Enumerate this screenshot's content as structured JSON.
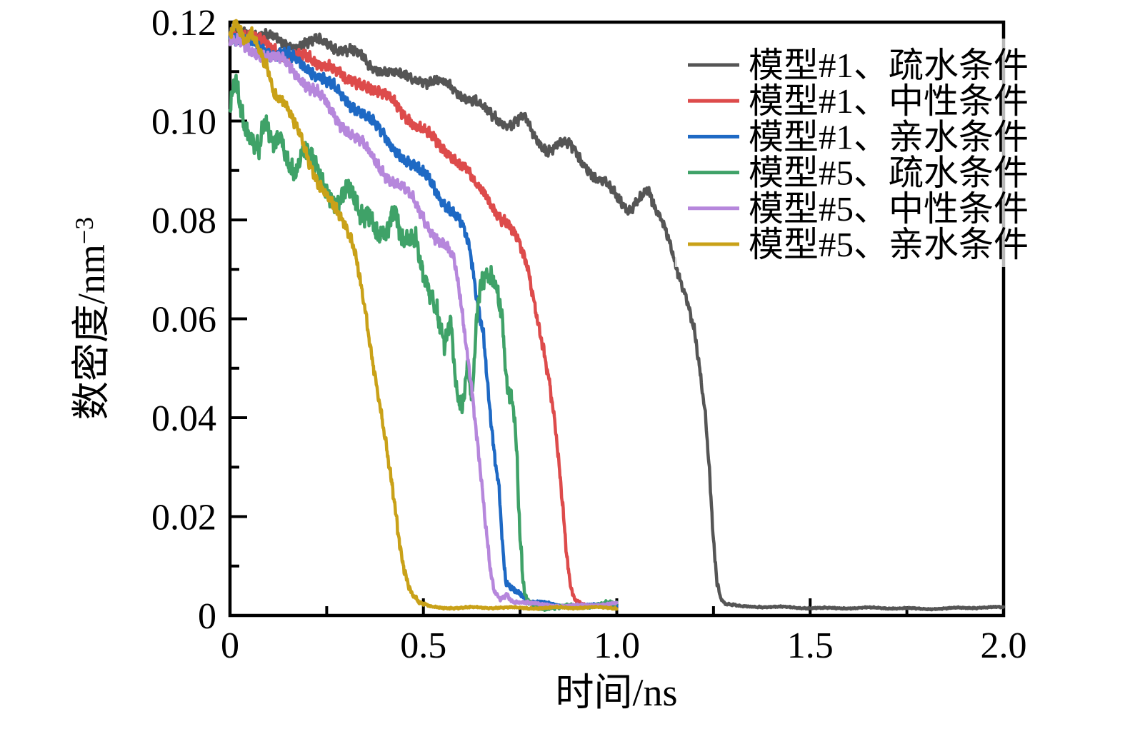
{
  "figure": {
    "background": "#ffffff",
    "frame_color": "#000000"
  },
  "chart_data": {
    "type": "line",
    "title": "",
    "xlabel": "时间/ns",
    "ylabel": "数密度/nm⁻³",
    "ylabel_base": "数密度/nm",
    "ylabel_exponent": "−3",
    "xlim": [
      0,
      2.0
    ],
    "ylim": [
      0,
      0.12
    ],
    "x_major_ticks": [
      0,
      0.5,
      1.0,
      1.5,
      2.0
    ],
    "x_tick_labels": [
      "0",
      "0.5",
      "1.0",
      "1.5",
      "2.0"
    ],
    "x_minor_step": 0.25,
    "y_major_ticks": [
      0,
      0.02,
      0.04,
      0.06,
      0.08,
      0.1,
      0.12
    ],
    "y_tick_labels": [
      "0",
      "0.02",
      "0.04",
      "0.06",
      "0.08",
      "0.10",
      "0.12"
    ],
    "y_minor_step": 0.01,
    "grid": false,
    "tick_direction": "in",
    "legend_position": "upper right",
    "series": [
      {
        "name": "模型#1、疏水条件",
        "color": "#555555",
        "t_end": 2.0,
        "seed": 1,
        "noise_hf": 0.0011,
        "noise_lf": 0.0011,
        "points": [
          [
            0,
            0.117
          ],
          [
            0.03,
            0.1178
          ],
          [
            0.08,
            0.1172
          ],
          [
            0.13,
            0.1163
          ],
          [
            0.18,
            0.1158
          ],
          [
            0.23,
            0.1162
          ],
          [
            0.28,
            0.1145
          ],
          [
            0.33,
            0.113
          ],
          [
            0.37,
            0.111
          ],
          [
            0.41,
            0.1103
          ],
          [
            0.45,
            0.1093
          ],
          [
            0.5,
            0.1085
          ],
          [
            0.55,
            0.107
          ],
          [
            0.6,
            0.1052
          ],
          [
            0.64,
            0.1035
          ],
          [
            0.68,
            0.101
          ],
          [
            0.72,
            0.1
          ],
          [
            0.76,
            0.1008
          ],
          [
            0.79,
            0.096
          ],
          [
            0.82,
            0.094
          ],
          [
            0.85,
            0.0952
          ],
          [
            0.88,
            0.0945
          ],
          [
            0.91,
            0.0915
          ],
          [
            0.94,
            0.0895
          ],
          [
            0.97,
            0.088
          ],
          [
            1.0,
            0.0845
          ],
          [
            1.03,
            0.0825
          ],
          [
            1.055,
            0.0845
          ],
          [
            1.08,
            0.0858
          ],
          [
            1.1,
            0.081
          ],
          [
            1.12,
            0.0788
          ],
          [
            1.14,
            0.0745
          ],
          [
            1.16,
            0.069
          ],
          [
            1.18,
            0.0642
          ],
          [
            1.2,
            0.0575
          ],
          [
            1.215,
            0.049
          ],
          [
            1.23,
            0.04
          ],
          [
            1.24,
            0.029
          ],
          [
            1.25,
            0.016
          ],
          [
            1.258,
            0.0085
          ],
          [
            1.267,
            0.0042
          ],
          [
            1.28,
            0.0025
          ],
          [
            1.32,
            0.0018
          ],
          [
            1.45,
            0.0016
          ],
          [
            1.6,
            0.0015
          ],
          [
            1.8,
            0.0014
          ],
          [
            2.0,
            0.0016
          ]
        ]
      },
      {
        "name": "模型#1、中性条件",
        "color": "#dd4b4b",
        "t_end": 1.0,
        "seed": 2,
        "noise_hf": 0.0012,
        "noise_lf": 0.0012,
        "points": [
          [
            0,
            0.1168
          ],
          [
            0.03,
            0.1176
          ],
          [
            0.07,
            0.1162
          ],
          [
            0.12,
            0.115
          ],
          [
            0.17,
            0.1132
          ],
          [
            0.22,
            0.1118
          ],
          [
            0.26,
            0.111
          ],
          [
            0.3,
            0.1073
          ],
          [
            0.35,
            0.108
          ],
          [
            0.4,
            0.1055
          ],
          [
            0.44,
            0.1028
          ],
          [
            0.48,
            0.0992
          ],
          [
            0.52,
            0.0962
          ],
          [
            0.55,
            0.094
          ],
          [
            0.58,
            0.0925
          ],
          [
            0.61,
            0.0905
          ],
          [
            0.635,
            0.0868
          ],
          [
            0.66,
            0.0858
          ],
          [
            0.69,
            0.0822
          ],
          [
            0.72,
            0.079
          ],
          [
            0.745,
            0.0755
          ],
          [
            0.77,
            0.07
          ],
          [
            0.79,
            0.062
          ],
          [
            0.81,
            0.054
          ],
          [
            0.825,
            0.047
          ],
          [
            0.84,
            0.038
          ],
          [
            0.855,
            0.026
          ],
          [
            0.868,
            0.014
          ],
          [
            0.878,
            0.007
          ],
          [
            0.89,
            0.0035
          ],
          [
            0.92,
            0.0022
          ],
          [
            0.96,
            0.0018
          ],
          [
            1.0,
            0.002
          ]
        ]
      },
      {
        "name": "模型#1、亲水条件",
        "color": "#1e69c4",
        "t_end": 1.0,
        "seed": 3,
        "noise_hf": 0.0012,
        "noise_lf": 0.0012,
        "points": [
          [
            0,
            0.1172
          ],
          [
            0.04,
            0.1162
          ],
          [
            0.09,
            0.115
          ],
          [
            0.14,
            0.1135
          ],
          [
            0.19,
            0.111
          ],
          [
            0.24,
            0.1082
          ],
          [
            0.29,
            0.1048
          ],
          [
            0.335,
            0.1028
          ],
          [
            0.38,
            0.099
          ],
          [
            0.42,
            0.095
          ],
          [
            0.46,
            0.0915
          ],
          [
            0.49,
            0.089
          ],
          [
            0.515,
            0.088
          ],
          [
            0.545,
            0.0845
          ],
          [
            0.575,
            0.0815
          ],
          [
            0.6,
            0.079
          ],
          [
            0.62,
            0.0745
          ],
          [
            0.638,
            0.065
          ],
          [
            0.655,
            0.058
          ],
          [
            0.67,
            0.044
          ],
          [
            0.683,
            0.033
          ],
          [
            0.696,
            0.025
          ],
          [
            0.705,
            0.013
          ],
          [
            0.713,
            0.0062
          ],
          [
            0.73,
            0.005
          ],
          [
            0.75,
            0.0045
          ],
          [
            0.77,
            0.0028
          ],
          [
            0.85,
            0.002
          ],
          [
            1.0,
            0.0022
          ]
        ]
      },
      {
        "name": "模型#5、疏水条件",
        "color": "#3fa268",
        "t_end": 1.0,
        "seed": 5,
        "noise_hf": 0.0022,
        "noise_lf": 0.003,
        "points": [
          [
            0,
            0.103
          ],
          [
            0.015,
            0.1092
          ],
          [
            0.035,
            0.102
          ],
          [
            0.055,
            0.0985
          ],
          [
            0.075,
            0.094
          ],
          [
            0.09,
            0.0982
          ],
          [
            0.11,
            0.093
          ],
          [
            0.13,
            0.0965
          ],
          [
            0.15,
            0.092
          ],
          [
            0.17,
            0.0893
          ],
          [
            0.19,
            0.0932
          ],
          [
            0.22,
            0.09
          ],
          [
            0.25,
            0.0875
          ],
          [
            0.28,
            0.0855
          ],
          [
            0.3,
            0.0872
          ],
          [
            0.32,
            0.0835
          ],
          [
            0.34,
            0.0802
          ],
          [
            0.36,
            0.0825
          ],
          [
            0.38,
            0.0783
          ],
          [
            0.405,
            0.076
          ],
          [
            0.425,
            0.0792
          ],
          [
            0.445,
            0.0735
          ],
          [
            0.465,
            0.0763
          ],
          [
            0.48,
            0.078
          ],
          [
            0.5,
            0.0705
          ],
          [
            0.52,
            0.0648
          ],
          [
            0.54,
            0.059
          ],
          [
            0.555,
            0.0545
          ],
          [
            0.57,
            0.0618
          ],
          [
            0.585,
            0.048
          ],
          [
            0.6,
            0.0442
          ],
          [
            0.615,
            0.052
          ],
          [
            0.625,
            0.0425
          ],
          [
            0.635,
            0.055
          ],
          [
            0.645,
            0.064
          ],
          [
            0.66,
            0.0662
          ],
          [
            0.675,
            0.067
          ],
          [
            0.69,
            0.066
          ],
          [
            0.705,
            0.06
          ],
          [
            0.715,
            0.047
          ],
          [
            0.725,
            0.045
          ],
          [
            0.735,
            0.0395
          ],
          [
            0.742,
            0.03
          ],
          [
            0.75,
            0.014
          ],
          [
            0.757,
            0.006
          ],
          [
            0.765,
            0.003
          ],
          [
            0.78,
            0.0022
          ],
          [
            0.85,
            0.0018
          ],
          [
            1.0,
            0.002
          ]
        ]
      },
      {
        "name": "模型#5、中性条件",
        "color": "#b687dc",
        "t_end": 1.0,
        "seed": 4,
        "noise_hf": 0.0012,
        "noise_lf": 0.0013,
        "points": [
          [
            0,
            0.1162
          ],
          [
            0.04,
            0.1155
          ],
          [
            0.09,
            0.1138
          ],
          [
            0.14,
            0.1115
          ],
          [
            0.19,
            0.1078
          ],
          [
            0.24,
            0.1038
          ],
          [
            0.29,
            0.0998
          ],
          [
            0.34,
            0.0958
          ],
          [
            0.39,
            0.0905
          ],
          [
            0.43,
            0.0868
          ],
          [
            0.47,
            0.0838
          ],
          [
            0.5,
            0.0805
          ],
          [
            0.53,
            0.0768
          ],
          [
            0.56,
            0.0745
          ],
          [
            0.58,
            0.0718
          ],
          [
            0.595,
            0.065
          ],
          [
            0.61,
            0.056
          ],
          [
            0.625,
            0.047
          ],
          [
            0.64,
            0.0355
          ],
          [
            0.652,
            0.026
          ],
          [
            0.663,
            0.016
          ],
          [
            0.673,
            0.0085
          ],
          [
            0.683,
            0.0045
          ],
          [
            0.7,
            0.003
          ],
          [
            0.715,
            0.0042
          ],
          [
            0.73,
            0.0028
          ],
          [
            0.8,
            0.0022
          ],
          [
            0.9,
            0.002
          ],
          [
            1.0,
            0.0023
          ]
        ]
      },
      {
        "name": "模型#5、亲水条件",
        "color": "#c9a118",
        "t_end": 1.0,
        "seed": 6,
        "noise_hf": 0.0012,
        "noise_lf": 0.0014,
        "points": [
          [
            0,
            0.118
          ],
          [
            0.012,
            0.1212
          ],
          [
            0.025,
            0.1192
          ],
          [
            0.04,
            0.116
          ],
          [
            0.055,
            0.117
          ],
          [
            0.07,
            0.1142
          ],
          [
            0.085,
            0.1118
          ],
          [
            0.1,
            0.1095
          ],
          [
            0.112,
            0.1058
          ],
          [
            0.125,
            0.1048
          ],
          [
            0.14,
            0.1042
          ],
          [
            0.155,
            0.1012
          ],
          [
            0.17,
            0.0985
          ],
          [
            0.185,
            0.0958
          ],
          [
            0.2,
            0.0926
          ],
          [
            0.215,
            0.0905
          ],
          [
            0.23,
            0.0885
          ],
          [
            0.245,
            0.0868
          ],
          [
            0.26,
            0.0845
          ],
          [
            0.275,
            0.082
          ],
          [
            0.29,
            0.0795
          ],
          [
            0.305,
            0.0772
          ],
          [
            0.32,
            0.0745
          ],
          [
            0.335,
            0.069
          ],
          [
            0.35,
            0.062
          ],
          [
            0.365,
            0.053
          ],
          [
            0.38,
            0.045
          ],
          [
            0.395,
            0.0375
          ],
          [
            0.41,
            0.03
          ],
          [
            0.425,
            0.0225
          ],
          [
            0.44,
            0.014
          ],
          [
            0.455,
            0.0085
          ],
          [
            0.47,
            0.0048
          ],
          [
            0.49,
            0.0026
          ],
          [
            0.52,
            0.0018
          ],
          [
            0.6,
            0.0015
          ],
          [
            0.8,
            0.0016
          ],
          [
            1.0,
            0.0015
          ]
        ]
      }
    ]
  }
}
